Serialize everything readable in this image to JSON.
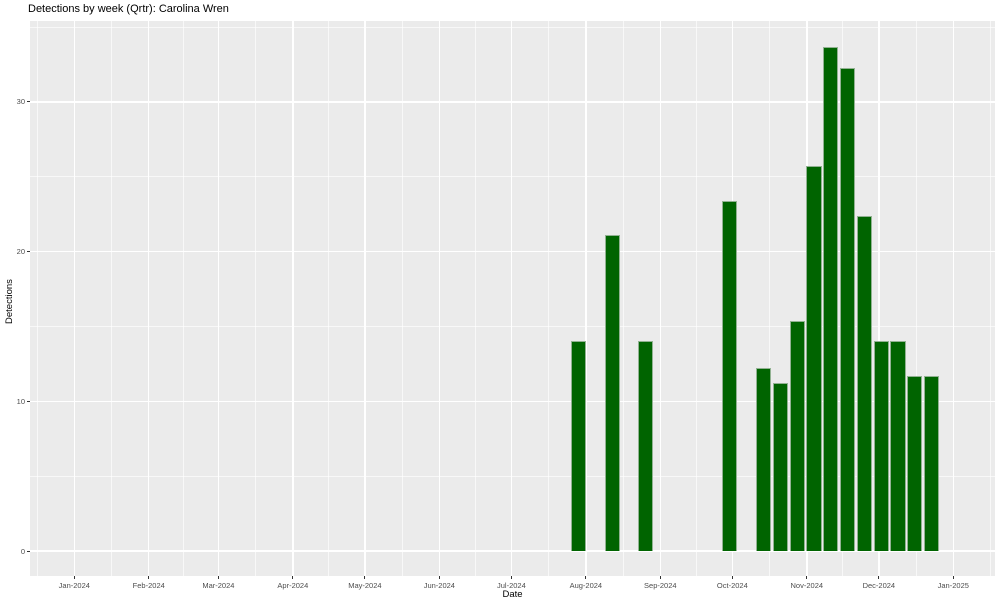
{
  "title": "Detections by week (Qrtr): Carolina Wren",
  "chart_data": {
    "type": "bar",
    "title": "Detections by week (Qrtr): Carolina Wren",
    "xlabel": "Date",
    "ylabel": "Detections",
    "grid": true,
    "legend": "none",
    "panel_bg_color": "#EBEBEB",
    "grid_color": "#FFFFFF",
    "bar_fill_color": "#006400",
    "bar_border_color": "#92b292",
    "tick_label_color": "#4D4D4D",
    "x_axis": {
      "range": [
        "2024-01-01",
        "2025-01-01"
      ],
      "ticks": [
        {
          "label": "Jan-2024",
          "date": "2024-01-01"
        },
        {
          "label": "Feb-2024",
          "date": "2024-02-01"
        },
        {
          "label": "Mar-2024",
          "date": "2024-03-01"
        },
        {
          "label": "Apr-2024",
          "date": "2024-04-01"
        },
        {
          "label": "May-2024",
          "date": "2024-05-01"
        },
        {
          "label": "Jun-2024",
          "date": "2024-06-01"
        },
        {
          "label": "Jul-2024",
          "date": "2024-07-01"
        },
        {
          "label": "Aug-2024",
          "date": "2024-08-01"
        },
        {
          "label": "Sep-2024",
          "date": "2024-09-01"
        },
        {
          "label": "Oct-2024",
          "date": "2024-10-01"
        },
        {
          "label": "Nov-2024",
          "date": "2024-11-01"
        },
        {
          "label": "Dec-2024",
          "date": "2024-12-01"
        },
        {
          "label": "Jan-2025",
          "date": "2025-01-01"
        }
      ]
    },
    "y_axis": {
      "ticks": [
        0,
        10,
        20,
        30
      ],
      "minor_ticks": [
        5,
        15,
        25,
        35
      ],
      "ylim_shown": [
        -1.7,
        35.4
      ]
    },
    "bars": [
      {
        "week_start": "2024-07-29",
        "value": 14.0
      },
      {
        "week_start": "2024-08-12",
        "value": 21.1
      },
      {
        "week_start": "2024-08-26",
        "value": 14.0
      },
      {
        "week_start": "2024-09-30",
        "value": 23.4
      },
      {
        "week_start": "2024-10-14",
        "value": 12.2
      },
      {
        "week_start": "2024-10-21",
        "value": 11.2
      },
      {
        "week_start": "2024-10-28",
        "value": 15.4
      },
      {
        "week_start": "2024-11-04",
        "value": 25.7
      },
      {
        "week_start": "2024-11-11",
        "value": 33.7
      },
      {
        "week_start": "2024-11-18",
        "value": 32.3
      },
      {
        "week_start": "2024-11-25",
        "value": 22.4
      },
      {
        "week_start": "2024-12-02",
        "value": 14.0
      },
      {
        "week_start": "2024-12-09",
        "value": 14.0
      },
      {
        "week_start": "2024-12-16",
        "value": 11.7
      },
      {
        "week_start": "2024-12-23",
        "value": 11.7
      }
    ],
    "bar_width_days": 6.3
  }
}
